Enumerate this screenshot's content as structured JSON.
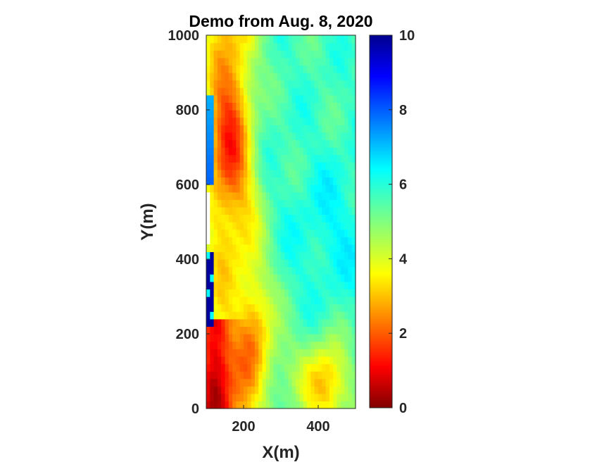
{
  "chart_data": {
    "type": "heatmap",
    "title": "Demo from Aug. 8, 2020",
    "xlabel": "X(m)",
    "ylabel": "Y(m)",
    "xlim": [
      100,
      500
    ],
    "ylim": [
      0,
      1000
    ],
    "xticks": [
      "200",
      "400"
    ],
    "yticks": [
      "0",
      "200",
      "400",
      "600",
      "800",
      "1000"
    ],
    "colorbar": {
      "min": 0,
      "max": 10,
      "ticks": [
        "0",
        "2",
        "4",
        "6",
        "8",
        "10"
      ],
      "colormap": "jet"
    },
    "grid": {
      "x_start": 100,
      "x_step": 10,
      "y_start": 0,
      "y_step": 20,
      "columns": 40,
      "rows": 50,
      "description": "approximate field values estimated from image",
      "features": [
        {
          "type": "dark-red band",
          "x": [
            100,
            160
          ],
          "y": [
            0,
            220
          ],
          "value": 0.8
        },
        {
          "type": "orange ridge",
          "x": [
            150,
            250
          ],
          "y": [
            0,
            1000
          ],
          "value": 3.0
        },
        {
          "type": "orange blob",
          "x": [
            340,
            480
          ],
          "y": [
            0,
            180
          ],
          "value": 2.6
        },
        {
          "type": "blue edge",
          "x": [
            100,
            125
          ],
          "y": [
            220,
            430
          ],
          "value": 9.6
        },
        {
          "type": "blue edge",
          "x": [
            100,
            120
          ],
          "y": [
            600,
            840
          ],
          "value": 7.8
        },
        {
          "type": "missing data",
          "x": [
            100,
            110
          ],
          "y": [
            440,
            580
          ],
          "value": null
        },
        {
          "type": "cyan field",
          "x": [
            280,
            500
          ],
          "y": [
            0,
            1000
          ],
          "value": 5.6
        }
      ]
    }
  }
}
